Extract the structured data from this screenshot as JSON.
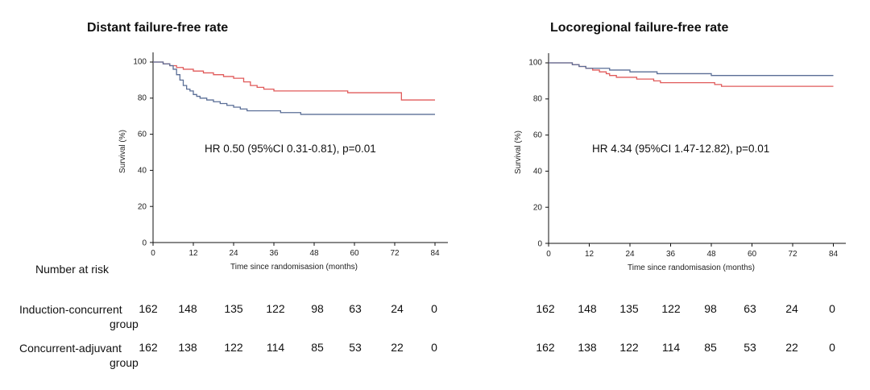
{
  "chart_data": [
    {
      "type": "line",
      "title": "Distant failure-free rate",
      "xlabel": "Time since randomisasion (months)",
      "ylabel": "Survival (%)",
      "xlim": [
        0,
        84
      ],
      "ylim": [
        0,
        100
      ],
      "xticks": [
        "0",
        "12",
        "24",
        "36",
        "48",
        "60",
        "72",
        "84"
      ],
      "yticks": [
        "0",
        "20",
        "40",
        "60",
        "80",
        "100"
      ],
      "annotation": "HR 0.50 (95%CI 0.31-0.81), p=0.01",
      "series": [
        {
          "color": "#e05a5a",
          "points": [
            [
              0,
              100
            ],
            [
              3,
              99
            ],
            [
              5,
              98
            ],
            [
              7,
              97
            ],
            [
              9,
              96
            ],
            [
              12,
              95
            ],
            [
              15,
              94
            ],
            [
              18,
              93
            ],
            [
              21,
              92
            ],
            [
              24,
              91
            ],
            [
              27,
              89
            ],
            [
              29,
              87
            ],
            [
              31,
              86
            ],
            [
              33,
              85
            ],
            [
              36,
              84
            ],
            [
              40,
              84
            ],
            [
              45,
              84
            ],
            [
              50,
              84
            ],
            [
              58,
              83
            ],
            [
              60,
              83
            ],
            [
              62,
              83
            ],
            [
              72,
              83
            ],
            [
              74,
              79
            ],
            [
              84,
              79
            ]
          ]
        },
        {
          "color": "#5a6e96",
          "points": [
            [
              0,
              100
            ],
            [
              3,
              99
            ],
            [
              5,
              98
            ],
            [
              6,
              96
            ],
            [
              7,
              93
            ],
            [
              8,
              90
            ],
            [
              9,
              87
            ],
            [
              10,
              85
            ],
            [
              11,
              84
            ],
            [
              12,
              82
            ],
            [
              13,
              81
            ],
            [
              14,
              80
            ],
            [
              16,
              79
            ],
            [
              18,
              78
            ],
            [
              20,
              77
            ],
            [
              22,
              76
            ],
            [
              24,
              75
            ],
            [
              26,
              74
            ],
            [
              28,
              73
            ],
            [
              32,
              73
            ],
            [
              38,
              72
            ],
            [
              44,
              71
            ],
            [
              60,
              71
            ],
            [
              70,
              71
            ],
            [
              84,
              71
            ]
          ]
        }
      ]
    },
    {
      "type": "line",
      "title": "Locoregional failure-free rate",
      "xlabel": "Time since randomisasion (months)",
      "ylabel": "Survival (%)",
      "xlim": [
        0,
        84
      ],
      "ylim": [
        0,
        100
      ],
      "xticks": [
        "0",
        "12",
        "24",
        "36",
        "48",
        "60",
        "72",
        "84"
      ],
      "yticks": [
        "0",
        "20",
        "40",
        "60",
        "80",
        "100"
      ],
      "annotation": "HR 4.34 (95%CI 1.47-12.82), p=0.01",
      "series": [
        {
          "color": "#e05a5a",
          "points": [
            [
              0,
              100
            ],
            [
              5,
              100
            ],
            [
              7,
              99
            ],
            [
              9,
              98
            ],
            [
              11,
              97
            ],
            [
              13,
              96
            ],
            [
              15,
              95
            ],
            [
              17,
              94
            ],
            [
              18,
              93
            ],
            [
              20,
              92
            ],
            [
              24,
              92
            ],
            [
              26,
              91
            ],
            [
              28,
              91
            ],
            [
              31,
              90
            ],
            [
              33,
              89
            ],
            [
              36,
              89
            ],
            [
              40,
              89
            ],
            [
              44,
              89
            ],
            [
              47,
              89
            ],
            [
              49,
              88
            ],
            [
              51,
              87
            ],
            [
              60,
              87
            ],
            [
              70,
              87
            ],
            [
              84,
              87
            ]
          ]
        },
        {
          "color": "#5a6e96",
          "points": [
            [
              0,
              100
            ],
            [
              5,
              100
            ],
            [
              7,
              99
            ],
            [
              9,
              98
            ],
            [
              11,
              97
            ],
            [
              14,
              97
            ],
            [
              18,
              96
            ],
            [
              22,
              96
            ],
            [
              24,
              95
            ],
            [
              28,
              95
            ],
            [
              32,
              94
            ],
            [
              36,
              94
            ],
            [
              44,
              94
            ],
            [
              48,
              93
            ],
            [
              60,
              93
            ],
            [
              72,
              93
            ],
            [
              84,
              93
            ]
          ]
        }
      ]
    }
  ],
  "risk_table": {
    "header": "Number at risk",
    "rows": [
      {
        "label_line1": "Induction-concurrent",
        "label_line2": "group",
        "left": [
          "162",
          "148",
          "135",
          "122",
          "98",
          "63",
          "24",
          "0"
        ],
        "right": [
          "162",
          "148",
          "135",
          "122",
          "98",
          "63",
          "24",
          "0"
        ]
      },
      {
        "label_line1": "Concurrent-adjuvant",
        "label_line2": "group",
        "left": [
          "162",
          "138",
          "122",
          "114",
          "85",
          "53",
          "22",
          "0"
        ],
        "right": [
          "162",
          "138",
          "122",
          "114",
          "85",
          "53",
          "22",
          "0"
        ]
      }
    ]
  }
}
